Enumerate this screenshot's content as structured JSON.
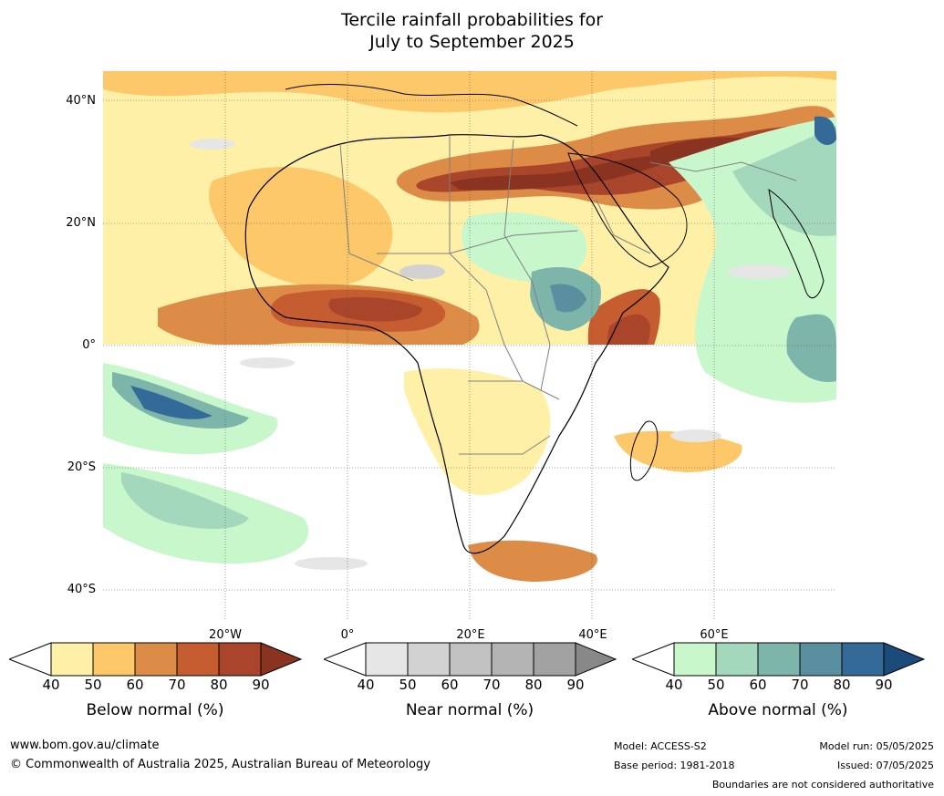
{
  "title_line1": "Tercile rainfall probabilities for",
  "title_line2": "July to September 2025",
  "lat_labels": [
    "40°N",
    "20°N",
    "0°",
    "20°S",
    "40°S"
  ],
  "lon_labels": [
    "20°W",
    "0°",
    "20°E",
    "40°E",
    "60°E"
  ],
  "colorbars": [
    {
      "title": "Below normal (%)",
      "ticks": [
        "40",
        "50",
        "60",
        "70",
        "80",
        "90"
      ],
      "colors": [
        "#fff0a8",
        "#fdc86a",
        "#dc8c47",
        "#c65d30",
        "#a9452a",
        "#8a3320"
      ]
    },
    {
      "title": "Near normal (%)",
      "ticks": [
        "40",
        "50",
        "60",
        "70",
        "80",
        "90"
      ],
      "colors": [
        "#e6e6e6",
        "#d2d2d2",
        "#c2c2c2",
        "#b4b4b4",
        "#a2a2a2",
        "#888888"
      ]
    },
    {
      "title": "Above normal (%)",
      "ticks": [
        "40",
        "50",
        "60",
        "70",
        "80",
        "90"
      ],
      "colors": [
        "#c8f7cc",
        "#a3d8bc",
        "#7db5ab",
        "#5a8f9f",
        "#336a98",
        "#1a4b7a"
      ]
    }
  ],
  "footer": {
    "website": "www.bom.gov.au/climate",
    "copyright": "© Commonwealth of Australia 2025, Australian Bureau of Meteorology",
    "model": "Model: ACCESS-S2",
    "base_period": "Base period: 1981-2018",
    "model_run": "Model run: 05/05/2025",
    "issued": "Issued: 07/05/2025",
    "disclaimer": "Boundaries are not considered authoritative"
  }
}
